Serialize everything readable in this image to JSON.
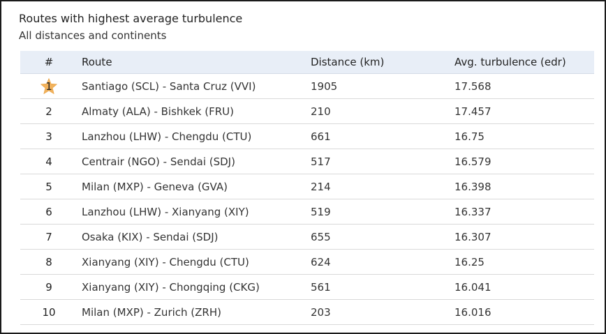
{
  "header": {
    "title": "Routes with highest average turbulence",
    "subtitle": "All distances and continents"
  },
  "table": {
    "columns": [
      "#",
      "Route",
      "Distance (km)",
      "Avg. turbulence (edr)"
    ],
    "rows": [
      {
        "rank": "1",
        "route": "Santiago (SCL) - Santa Cruz (VVI)",
        "distance": "1905",
        "turbulence": "17.568"
      },
      {
        "rank": "2",
        "route": "Almaty (ALA) - Bishkek (FRU)",
        "distance": "210",
        "turbulence": "17.457"
      },
      {
        "rank": "3",
        "route": "Lanzhou (LHW) - Chengdu (CTU)",
        "distance": "661",
        "turbulence": "16.75"
      },
      {
        "rank": "4",
        "route": "Centrair (NGO) - Sendai (SDJ)",
        "distance": "517",
        "turbulence": "16.579"
      },
      {
        "rank": "5",
        "route": "Milan (MXP) - Geneva (GVA)",
        "distance": "214",
        "turbulence": "16.398"
      },
      {
        "rank": "6",
        "route": "Lanzhou (LHW) - Xianyang (XIY)",
        "distance": "519",
        "turbulence": "16.337"
      },
      {
        "rank": "7",
        "route": "Osaka (KIX) - Sendai (SDJ)",
        "distance": "655",
        "turbulence": "16.307"
      },
      {
        "rank": "8",
        "route": "Xianyang (XIY) - Chengdu (CTU)",
        "distance": "624",
        "turbulence": "16.25"
      },
      {
        "rank": "9",
        "route": "Xianyang (XIY) - Chongqing (CKG)",
        "distance": "561",
        "turbulence": "16.041"
      },
      {
        "rank": "10",
        "route": "Milan (MXP) - Zurich (ZRH)",
        "distance": "203",
        "turbulence": "16.016"
      }
    ]
  },
  "icons": {
    "top_rank": "star-icon"
  },
  "colors": {
    "header_bg": "#e8eef7",
    "star": "#f2b25c"
  }
}
